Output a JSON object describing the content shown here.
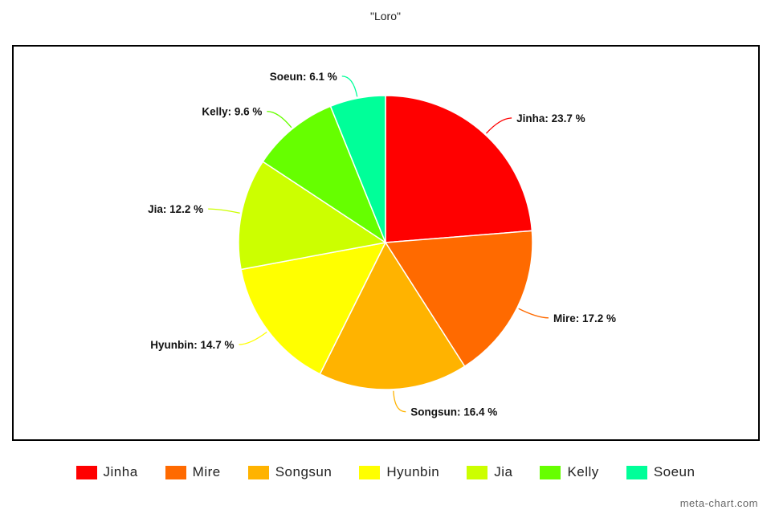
{
  "chart_data": {
    "type": "pie",
    "title": "\"Loro\"",
    "slices": [
      {
        "name": "Jinha",
        "value": 23.7,
        "label": "Jinha: 23.7 %",
        "color": "#ff0000"
      },
      {
        "name": "Mire",
        "value": 17.2,
        "label": "Mire: 17.2 %",
        "color": "#ff6a00"
      },
      {
        "name": "Songsun",
        "value": 16.4,
        "label": "Songsun: 16.4 %",
        "color": "#ffb300"
      },
      {
        "name": "Hyunbin",
        "value": 14.7,
        "label": "Hyunbin: 14.7 %",
        "color": "#ffff00"
      },
      {
        "name": "Jia",
        "value": 12.2,
        "label": "Jia: 12.2 %",
        "color": "#ccff00"
      },
      {
        "name": "Kelly",
        "value": 9.6,
        "label": "Kelly: 9.6 %",
        "color": "#66ff00"
      },
      {
        "name": "Soeun",
        "value": 6.1,
        "label": "Soeun: 6.1 %",
        "color": "#00ff99"
      }
    ],
    "legend_position": "bottom"
  },
  "watermark": "meta-chart.com"
}
